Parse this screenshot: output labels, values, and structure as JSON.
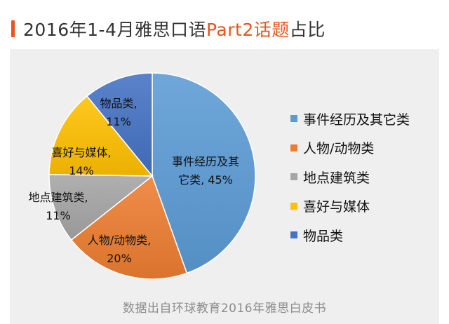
{
  "header": {
    "title_prefix": "2016年1-4月雅思口语",
    "title_highlight": "Part2话题",
    "title_suffix": "占比"
  },
  "source_note": "数据出自环球教育2016年雅思白皮书",
  "colors": {
    "accent": "#e8541c",
    "panel_bg": "#efefef",
    "series": [
      "#5b9bd5",
      "#ed7d31",
      "#a5a5a5",
      "#ffc000",
      "#4472c4"
    ]
  },
  "chart_data": {
    "type": "pie",
    "title": "2016年1-4月雅思口语Part2话题占比",
    "slices": [
      {
        "name": "事件经历及其它类",
        "value": 45,
        "label_lines": [
          "事件经历及其",
          "它类, 45%"
        ]
      },
      {
        "name": "人物/动物类",
        "value": 20,
        "label_lines": [
          "人物/动物类,",
          "20%"
        ]
      },
      {
        "name": "地点建筑类",
        "value": 11,
        "label_lines": [
          "地点建筑类,",
          "11%"
        ]
      },
      {
        "name": "喜好与媒体",
        "value": 14,
        "label_lines": [
          "喜好与媒体,",
          "14%"
        ]
      },
      {
        "name": "物品类",
        "value": 11,
        "label_lines": [
          "物品类,",
          "11%"
        ]
      }
    ],
    "legend_position": "right"
  }
}
